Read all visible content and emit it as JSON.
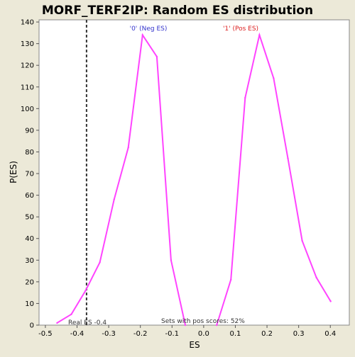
{
  "colors": {
    "background": "#ece9d8",
    "plot_background": "#ffffff",
    "line": "#ff44ff",
    "neg_label": "#3333cc",
    "pos_label": "#dd2222",
    "marker": "#333333"
  },
  "chart_data": {
    "type": "line",
    "title": "MORF_TERF2IP: Random ES distribution",
    "xlabel": "ES",
    "ylabel": "P(ES)",
    "xlim": [
      -0.52,
      0.46
    ],
    "ylim": [
      0,
      141
    ],
    "grid": false,
    "x_ticks": [
      "-0.5",
      "-0.4",
      "-0.3",
      "-0.2",
      "-0.1",
      "0.0",
      "0.1",
      "0.2",
      "0.3",
      "0.4"
    ],
    "y_ticks": [
      "0",
      "10",
      "20",
      "30",
      "40",
      "50",
      "60",
      "70",
      "80",
      "90",
      "100",
      "110",
      "120",
      "130",
      "140"
    ],
    "series": [
      {
        "name": "'0' (Neg ES)",
        "x": [
          -0.463,
          -0.418,
          -0.373,
          -0.328,
          -0.283,
          -0.238,
          -0.193,
          -0.148,
          -0.103,
          -0.058
        ],
        "y": [
          1,
          5,
          16,
          29,
          58,
          82,
          134,
          124,
          30,
          0
        ]
      },
      {
        "name": "'1' (Pos ES)",
        "x": [
          0.041,
          0.086,
          0.131,
          0.176,
          0.221,
          0.266,
          0.311,
          0.356,
          0.401
        ],
        "y": [
          0,
          21,
          105,
          134,
          114,
          77,
          39,
          22,
          11
        ]
      }
    ],
    "real_es": -0.37,
    "annotations": {
      "neg_label": "'0' (Neg ES)",
      "pos_label": "'1' (Pos ES)",
      "real_es": "Real ES -0.4",
      "pos_fraction": "Sets with pos scores: 52%"
    }
  }
}
